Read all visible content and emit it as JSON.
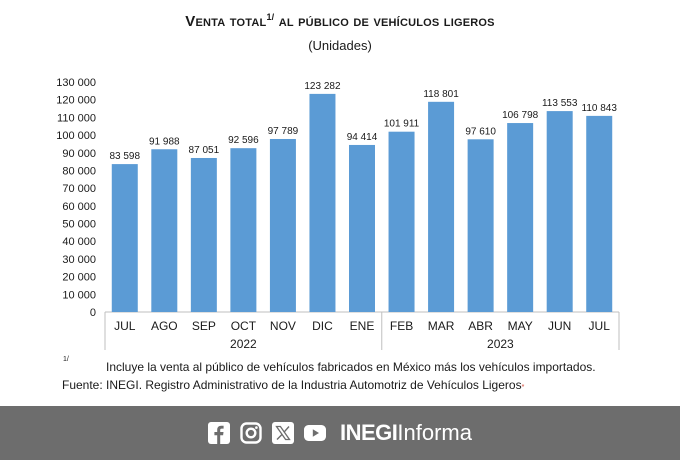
{
  "header": {
    "title_main": "Venta total",
    "title_sup": "1/",
    "title_rest": "al público de vehículos ligeros",
    "subtitle": "(Unidades)"
  },
  "chart_data": {
    "type": "bar",
    "categories": [
      "JUL",
      "AGO",
      "SEP",
      "OCT",
      "NOV",
      "DIC",
      "ENE",
      "FEB",
      "MAR",
      "ABR",
      "MAY",
      "JUN",
      "JUL"
    ],
    "values": [
      83598,
      91988,
      87051,
      92596,
      97789,
      123282,
      94414,
      101911,
      118801,
      97610,
      106798,
      113553,
      110843
    ],
    "value_labels": [
      "83 598",
      "91 988",
      "87 051",
      "92 596",
      "97 789",
      "123 282",
      "94 414",
      "101 911",
      "118 801",
      "97 610",
      "106 798",
      "113 553",
      "110 843"
    ],
    "yticks": [
      "0",
      "10 000",
      "20 000",
      "30 000",
      "40 000",
      "50 000",
      "60 000",
      "70 000",
      "80 000",
      "90 000",
      "100 000",
      "110 000",
      "120 000",
      "130 000"
    ],
    "ylim": [
      0,
      130000
    ],
    "year_groups": [
      {
        "label": "2022",
        "from": 0,
        "to": 6
      },
      {
        "label": "2023",
        "from": 7,
        "to": 12
      }
    ],
    "bar_color": "#5b9bd5",
    "grid": false
  },
  "notes": {
    "footnote_mark": "1/",
    "footnote_text": "Incluye la venta al público de vehículos fabricados en México más los vehículos importados.",
    "source_text": "Fuente: INEGI. Registro Administrativo de la Industria Automotriz de Vehículos Ligeros",
    "source_mark": "*"
  },
  "footer": {
    "icons": [
      "facebook-icon",
      "instagram-icon",
      "x-icon",
      "youtube-icon"
    ],
    "brand_bold": "INEGI",
    "brand_light": "Informa",
    "background": "#6d6d6d"
  }
}
